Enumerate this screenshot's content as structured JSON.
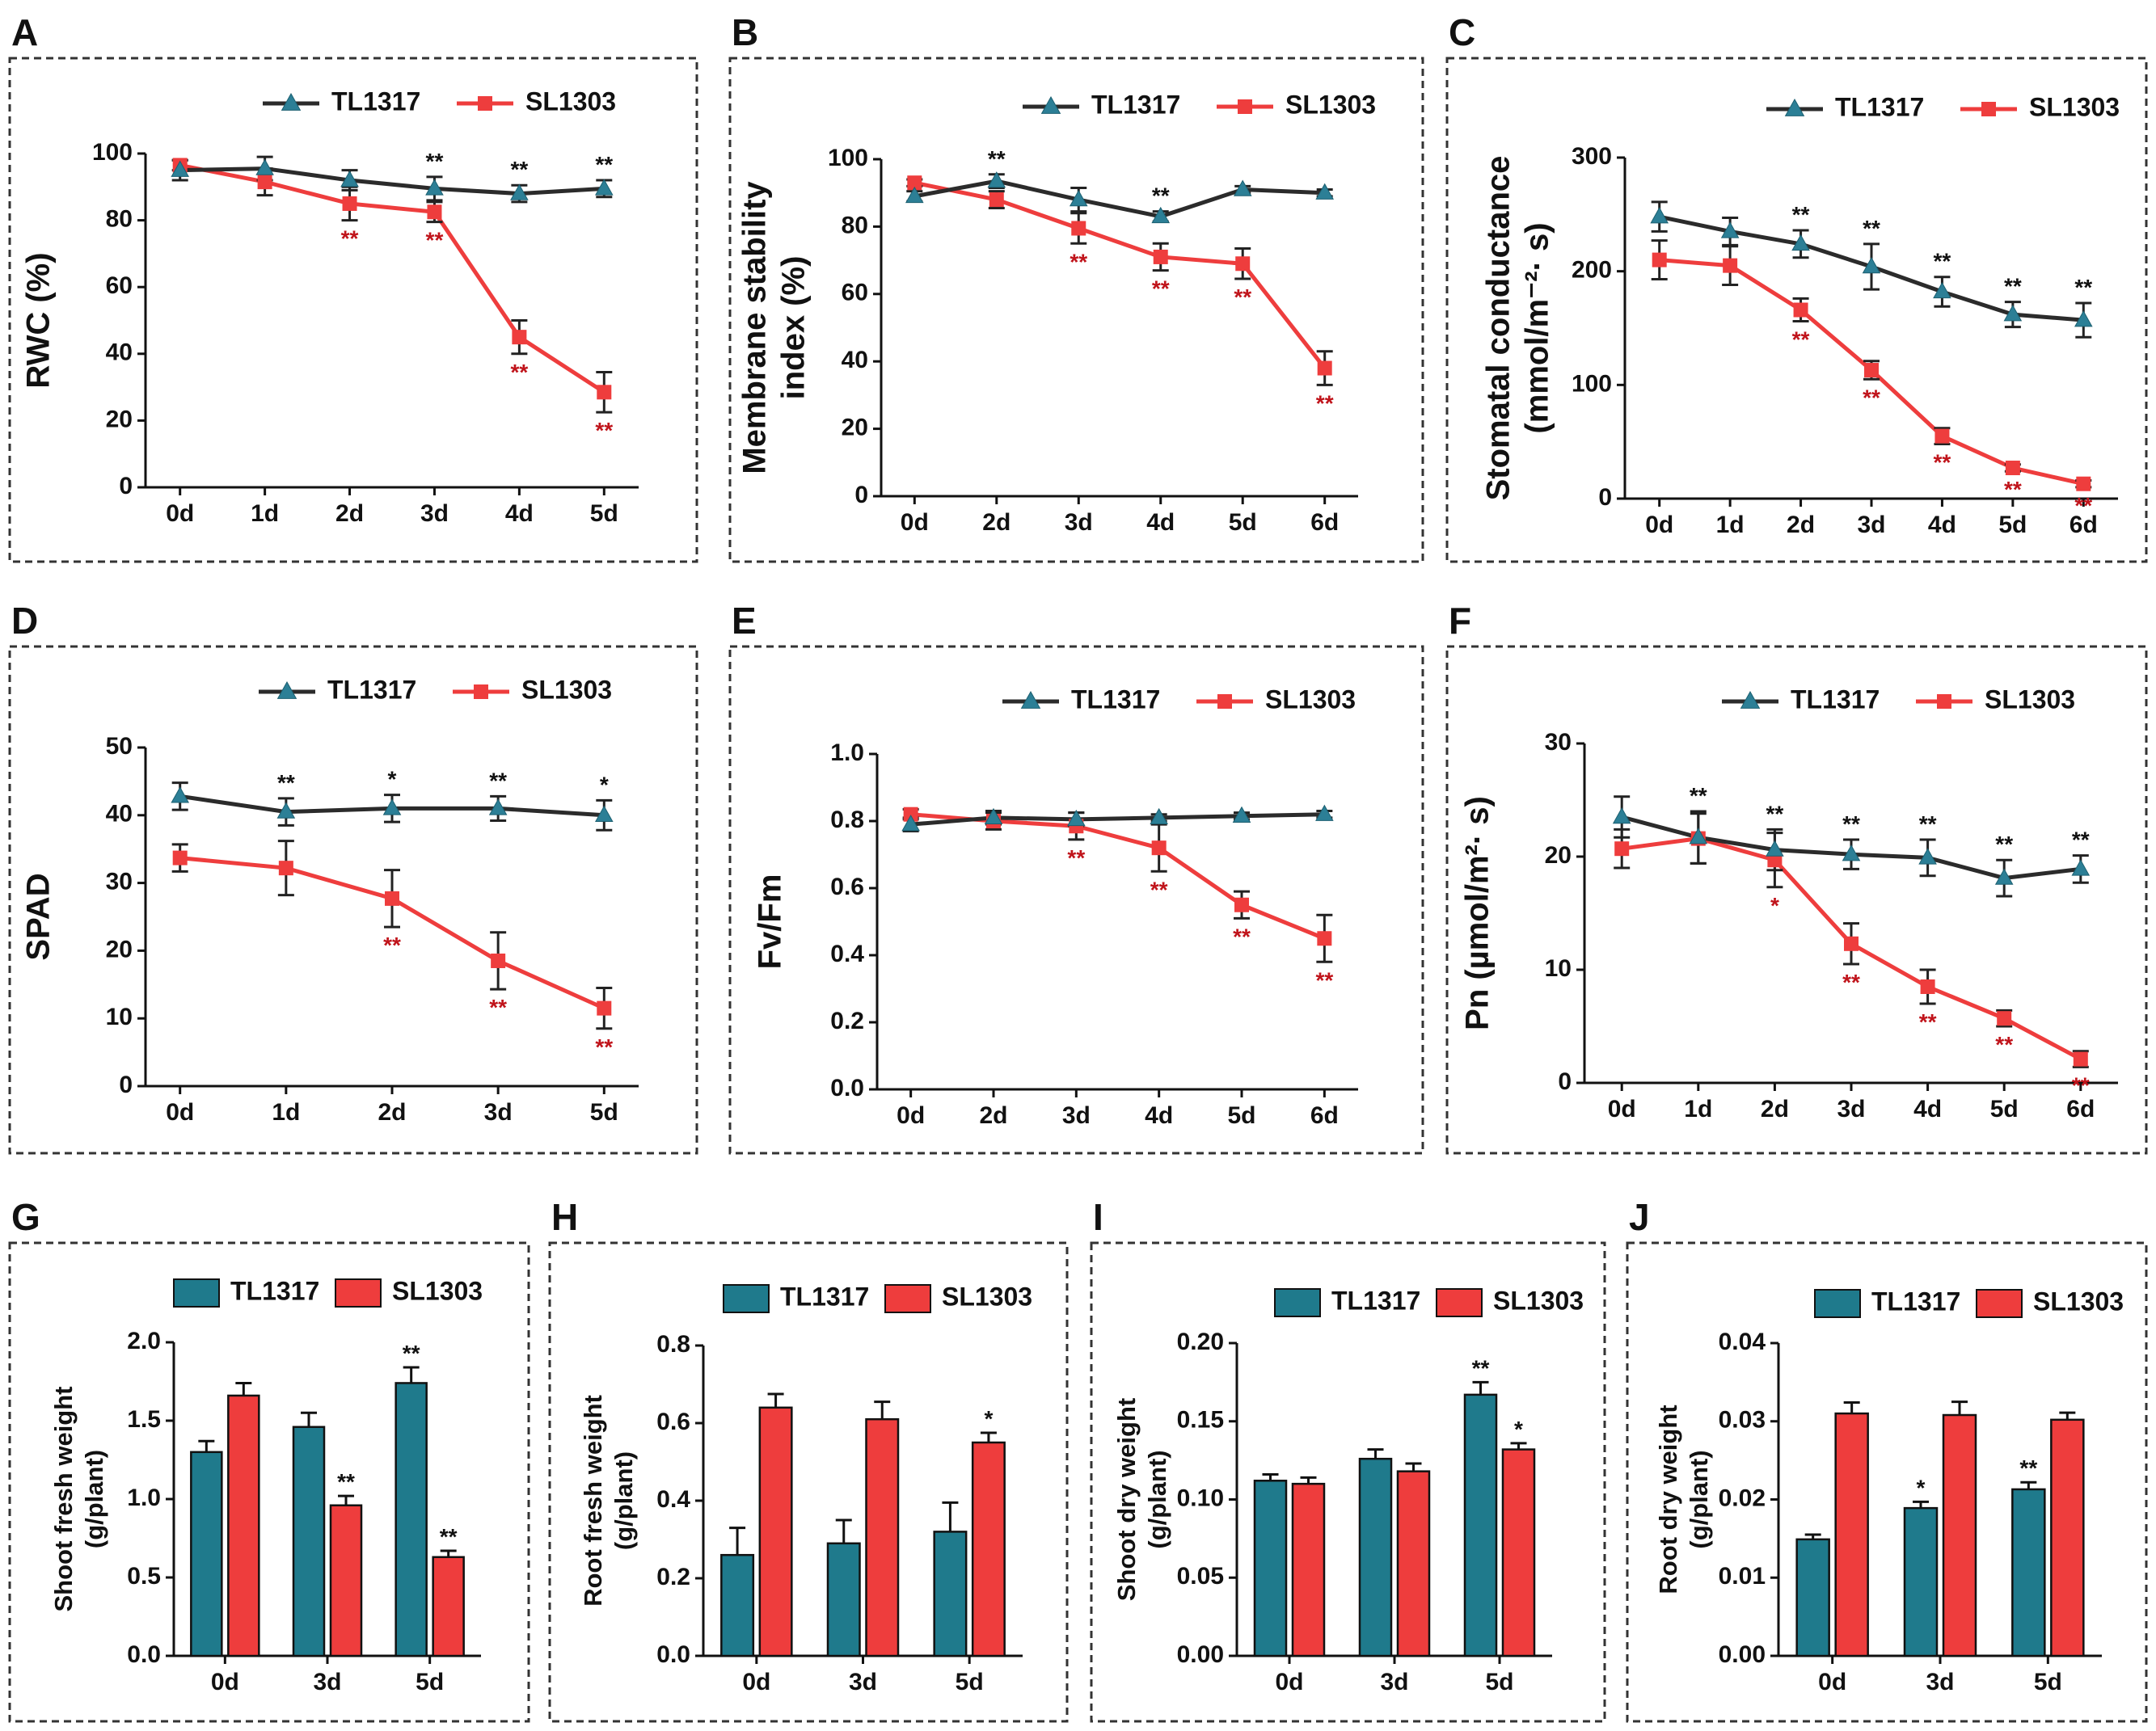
{
  "colors": {
    "tl_line": "#2b2b2b",
    "tl_marker": "#2c7f96",
    "tl_bar": "#1f7a8c",
    "sl": "#ee3d3d",
    "sig_black": "#111111",
    "sig_red": "#c0141b"
  },
  "chart_data": [
    {
      "panel": "A",
      "type": "line",
      "ylabel": [
        "RWC (%)"
      ],
      "categories": [
        "0d",
        "1d",
        "2d",
        "3d",
        "4d",
        "5d"
      ],
      "ylim": [
        0,
        100
      ],
      "yticks": [
        0,
        20,
        40,
        60,
        80,
        100
      ],
      "series": [
        {
          "name": "TL1317",
          "values": [
            95,
            95.5,
            92,
            89.5,
            88,
            89.5
          ],
          "errors": [
            3,
            3.5,
            3,
            3.5,
            2.5,
            2.5
          ],
          "sig": [
            "",
            "",
            "",
            "**",
            "**",
            "**"
          ]
        },
        {
          "name": "SL1303",
          "values": [
            96.5,
            91.5,
            85,
            82.5,
            45,
            28.5
          ],
          "errors": [
            1.5,
            4,
            5,
            3,
            5,
            6
          ],
          "sig": [
            "",
            "",
            "**",
            "**",
            "**",
            "**"
          ]
        }
      ]
    },
    {
      "panel": "B",
      "type": "line",
      "ylabel": [
        "Membrane stability",
        "index (%)"
      ],
      "categories": [
        "0d",
        "2d",
        "3d",
        "4d",
        "5d",
        "6d"
      ],
      "ylim": [
        0,
        100
      ],
      "yticks": [
        0,
        20,
        40,
        60,
        80,
        100
      ],
      "series": [
        {
          "name": "TL1317",
          "values": [
            89,
            93.5,
            88,
            83,
            91,
            90
          ],
          "errors": [
            1.5,
            2,
            3.5,
            1.5,
            1,
            1
          ],
          "sig": [
            "",
            "**",
            "",
            "**",
            "",
            ""
          ]
        },
        {
          "name": "SL1303",
          "values": [
            93,
            88,
            79.5,
            71,
            69,
            38
          ],
          "errors": [
            1,
            2.5,
            4.5,
            4,
            4.5,
            5
          ],
          "sig": [
            "",
            "",
            "**",
            "**",
            "**",
            "**"
          ]
        }
      ]
    },
    {
      "panel": "C",
      "type": "line",
      "ylabel": [
        "Stomatal conductance",
        "(mmol/m⁻²· s)"
      ],
      "categories": [
        "0d",
        "1d",
        "2d",
        "3d",
        "4d",
        "5d",
        "6d"
      ],
      "ylim": [
        0,
        300
      ],
      "yticks": [
        0,
        100,
        200,
        300
      ],
      "series": [
        {
          "name": "TL1317",
          "values": [
            248,
            235,
            224,
            204,
            182,
            162,
            157
          ],
          "errors": [
            13,
            12,
            12,
            20,
            13,
            11,
            15
          ],
          "sig": [
            "",
            "",
            "**",
            "**",
            "**",
            "**",
            "**"
          ]
        },
        {
          "name": "SL1303",
          "values": [
            210,
            205,
            166,
            113,
            55,
            27,
            13
          ],
          "errors": [
            17,
            17,
            10,
            8,
            7,
            3,
            3
          ],
          "sig": [
            "",
            "",
            "**",
            "**",
            "**",
            "**",
            "**"
          ]
        }
      ]
    },
    {
      "panel": "D",
      "type": "line",
      "ylabel": [
        "SPAD"
      ],
      "categories": [
        "0d",
        "1d",
        "2d",
        "3d",
        "5d"
      ],
      "ylim": [
        0,
        50
      ],
      "yticks": [
        0,
        10,
        20,
        30,
        40,
        50
      ],
      "series": [
        {
          "name": "TL1317",
          "values": [
            42.8,
            40.5,
            41,
            41,
            40
          ],
          "errors": [
            2,
            2,
            2,
            1.8,
            2.2
          ],
          "sig": [
            "",
            "**",
            "*",
            "**",
            "*"
          ]
        },
        {
          "name": "SL1303",
          "values": [
            33.7,
            32.2,
            27.7,
            18.5,
            11.5
          ],
          "errors": [
            2,
            4,
            4.2,
            4.2,
            3
          ],
          "sig": [
            "",
            "",
            "**",
            "**",
            "**"
          ]
        }
      ]
    },
    {
      "panel": "E",
      "type": "line",
      "ylabel": [
        "Fv/Fm"
      ],
      "categories": [
        "0d",
        "2d",
        "3d",
        "4d",
        "5d",
        "6d"
      ],
      "ylim": [
        0,
        1
      ],
      "yticks": [
        "0.0",
        "0.2",
        "0.4",
        "0.6",
        "0.8",
        "1.0"
      ],
      "series": [
        {
          "name": "TL1317",
          "values": [
            0.79,
            0.81,
            0.805,
            0.81,
            0.815,
            0.82
          ],
          "errors": [
            0.02,
            0.02,
            0.02,
            0.01,
            0.01,
            0.01
          ],
          "sig": [
            "",
            "",
            "",
            "",
            "",
            ""
          ]
        },
        {
          "name": "SL1303",
          "values": [
            0.82,
            0.8,
            0.785,
            0.72,
            0.55,
            0.45
          ],
          "errors": [
            0.015,
            0.025,
            0.04,
            0.07,
            0.04,
            0.07
          ],
          "sig": [
            "",
            "",
            "**",
            "**",
            "**",
            "**"
          ]
        }
      ]
    },
    {
      "panel": "F",
      "type": "line",
      "ylabel": [
        "Pn (µmol/m²· s)"
      ],
      "categories": [
        "0d",
        "1d",
        "2d",
        "3d",
        "4d",
        "5d",
        "6d"
      ],
      "ylim": [
        0,
        30
      ],
      "yticks": [
        0,
        10,
        20,
        30
      ],
      "series": [
        {
          "name": "TL1317",
          "values": [
            23.5,
            21.7,
            20.6,
            20.2,
            19.9,
            18.1,
            18.9
          ],
          "errors": [
            1.8,
            2.3,
            1.8,
            1.3,
            1.6,
            1.6,
            1.2
          ],
          "sig": [
            "",
            "**",
            "**",
            "**",
            "**",
            "**",
            "**"
          ]
        },
        {
          "name": "SL1303",
          "values": [
            20.7,
            21.6,
            19.7,
            12.3,
            8.5,
            5.7,
            2.1
          ],
          "errors": [
            1.7,
            2.2,
            2.4,
            1.8,
            1.5,
            0.7,
            0.7
          ],
          "sig": [
            "",
            "",
            "*",
            "**",
            "**",
            "**",
            "**"
          ]
        }
      ]
    },
    {
      "panel": "G",
      "type": "bar",
      "ylabel": [
        "Shoot fresh weight",
        "(g/plant)"
      ],
      "categories": [
        "0d",
        "3d",
        "5d"
      ],
      "ylim": [
        0,
        2
      ],
      "yticks": [
        "0.0",
        "0.5",
        "1.0",
        "1.5",
        "2.0"
      ],
      "series": [
        {
          "name": "TL1317",
          "values": [
            1.3,
            1.46,
            1.74
          ],
          "errors": [
            0.07,
            0.09,
            0.1
          ],
          "sig": [
            "",
            "",
            "**"
          ]
        },
        {
          "name": "SL1303",
          "values": [
            1.66,
            0.96,
            0.63
          ],
          "errors": [
            0.08,
            0.06,
            0.04
          ],
          "sig": [
            "",
            "**",
            "**"
          ]
        }
      ]
    },
    {
      "panel": "H",
      "type": "bar",
      "ylabel": [
        "Root fresh weight",
        "(g/plant)"
      ],
      "categories": [
        "0d",
        "3d",
        "5d"
      ],
      "ylim": [
        0,
        0.8
      ],
      "yticks": [
        "0.0",
        "0.2",
        "0.4",
        "0.6",
        "0.8"
      ],
      "series": [
        {
          "name": "TL1317",
          "values": [
            0.26,
            0.29,
            0.32
          ],
          "errors": [
            0.07,
            0.06,
            0.075
          ],
          "sig": [
            "",
            "",
            ""
          ]
        },
        {
          "name": "SL1303",
          "values": [
            0.64,
            0.61,
            0.55
          ],
          "errors": [
            0.035,
            0.045,
            0.025
          ],
          "sig": [
            "",
            "",
            "*"
          ]
        }
      ]
    },
    {
      "panel": "I",
      "type": "bar",
      "ylabel": [
        "Shoot dry weight",
        "(g/plant)"
      ],
      "categories": [
        "0d",
        "3d",
        "5d"
      ],
      "ylim": [
        0,
        0.2
      ],
      "yticks": [
        "0.00",
        "0.05",
        "0.10",
        "0.15",
        "0.20"
      ],
      "series": [
        {
          "name": "TL1317",
          "values": [
            0.112,
            0.126,
            0.167
          ],
          "errors": [
            0.004,
            0.006,
            0.008
          ],
          "sig": [
            "",
            "",
            "**"
          ]
        },
        {
          "name": "SL1303",
          "values": [
            0.11,
            0.118,
            0.132
          ],
          "errors": [
            0.004,
            0.005,
            0.004
          ],
          "sig": [
            "",
            "",
            "*"
          ]
        }
      ]
    },
    {
      "panel": "J",
      "type": "bar",
      "ylabel": [
        "Root dry weight",
        "(g/plant)"
      ],
      "categories": [
        "0d",
        "3d",
        "5d"
      ],
      "ylim": [
        0,
        0.04
      ],
      "yticks": [
        "0.00",
        "0.01",
        "0.02",
        "0.03",
        "0.04"
      ],
      "series": [
        {
          "name": "TL1317",
          "values": [
            0.0149,
            0.0189,
            0.0213
          ],
          "errors": [
            0.0006,
            0.0008,
            0.0009
          ],
          "sig": [
            "",
            "*",
            "**"
          ]
        },
        {
          "name": "SL1303",
          "values": [
            0.031,
            0.0308,
            0.0302
          ],
          "errors": [
            0.0014,
            0.0017,
            0.0009
          ],
          "sig": [
            "",
            "",
            ""
          ]
        }
      ]
    }
  ]
}
